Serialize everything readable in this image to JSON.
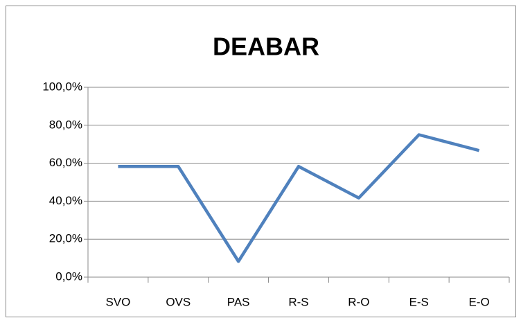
{
  "chart_data": {
    "type": "line",
    "title": "DEABAR",
    "categories": [
      "SVO",
      "OVS",
      "PAS",
      "R-S",
      "R-O",
      "E-S",
      "E-O"
    ],
    "series": [
      {
        "name": "DEABAR",
        "color": "#4f81bd",
        "values": [
          58.3,
          58.3,
          8.3,
          58.3,
          41.7,
          75,
          66.7
        ]
      }
    ],
    "ylim": [
      0,
      100
    ],
    "yticks": [
      {
        "value": 0,
        "label": "0,0%"
      },
      {
        "value": 20,
        "label": "20,0%"
      },
      {
        "value": 40,
        "label": "40,0%"
      },
      {
        "value": 60,
        "label": "60,0%"
      },
      {
        "value": 80,
        "label": "80,0%"
      },
      {
        "value": 100,
        "label": "100,0%"
      }
    ],
    "grid": true,
    "legend": false
  }
}
